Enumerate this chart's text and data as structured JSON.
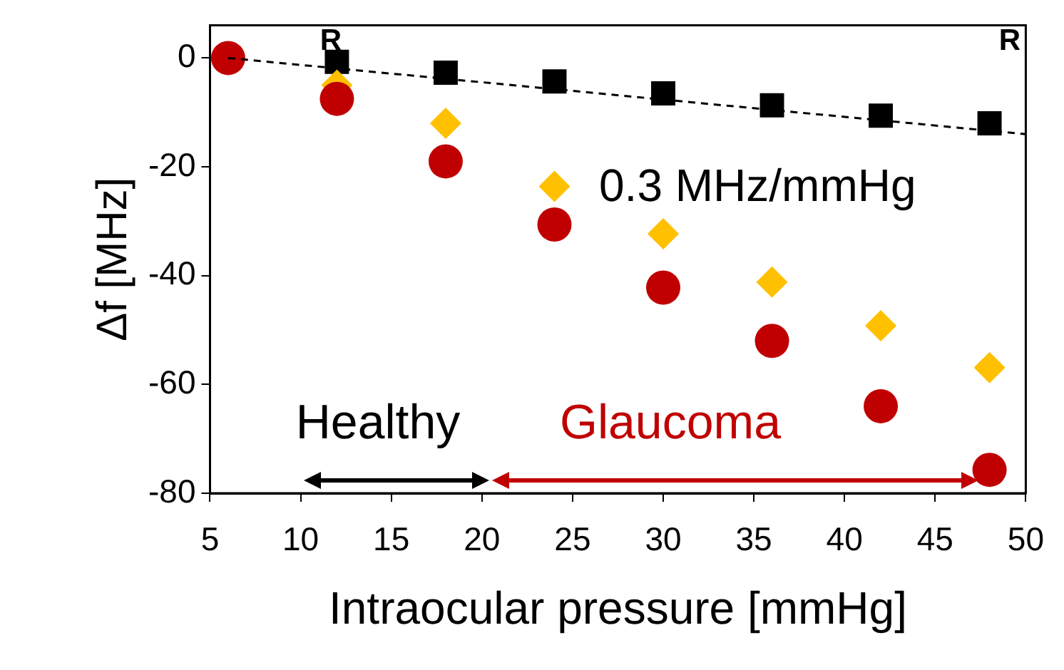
{
  "chart_data": {
    "type": "scatter",
    "xlabel": "Intraocular pressure [mmHg]",
    "ylabel": "Δf [MHz]",
    "xlim": [
      5,
      50
    ],
    "xticks": [
      5,
      10,
      15,
      20,
      25,
      30,
      35,
      40,
      45,
      50
    ],
    "ylim": [
      -80,
      6
    ],
    "yticks": [
      -80,
      -60,
      -40,
      -20,
      0
    ],
    "grid": false,
    "legend": false,
    "series": [
      {
        "type": "line",
        "color": "#000000",
        "x": [
          6,
          50
        ],
        "values": [
          0,
          -14
        ],
        "line_style": "dashed",
        "marker": "none"
      },
      {
        "color": "#c00000",
        "marker": "circle",
        "x": [
          6,
          12,
          18,
          24,
          30,
          36,
          42,
          48
        ],
        "values": [
          0,
          -7.5,
          -19,
          -30.6,
          -42.2,
          -52,
          -64,
          -75.7
        ]
      },
      {
        "color": "#ffc000",
        "marker": "diamond",
        "x": [
          12,
          18,
          24,
          30,
          36,
          42,
          48
        ],
        "values": [
          -5,
          -12,
          -23.6,
          -32.3,
          -41.2,
          -49.2,
          -56.9
        ]
      },
      {
        "color": "#000000",
        "marker": "square",
        "x": [
          12,
          18,
          24,
          30,
          36,
          42,
          48
        ],
        "values": [
          -0.7,
          -2.7,
          -4.3,
          -6.5,
          -8.7,
          -10.6,
          -12
        ]
      }
    ],
    "annotations": [
      "0.3 MHz/mmHg",
      "R",
      "R",
      "Healthy",
      "Glaucoma"
    ]
  }
}
